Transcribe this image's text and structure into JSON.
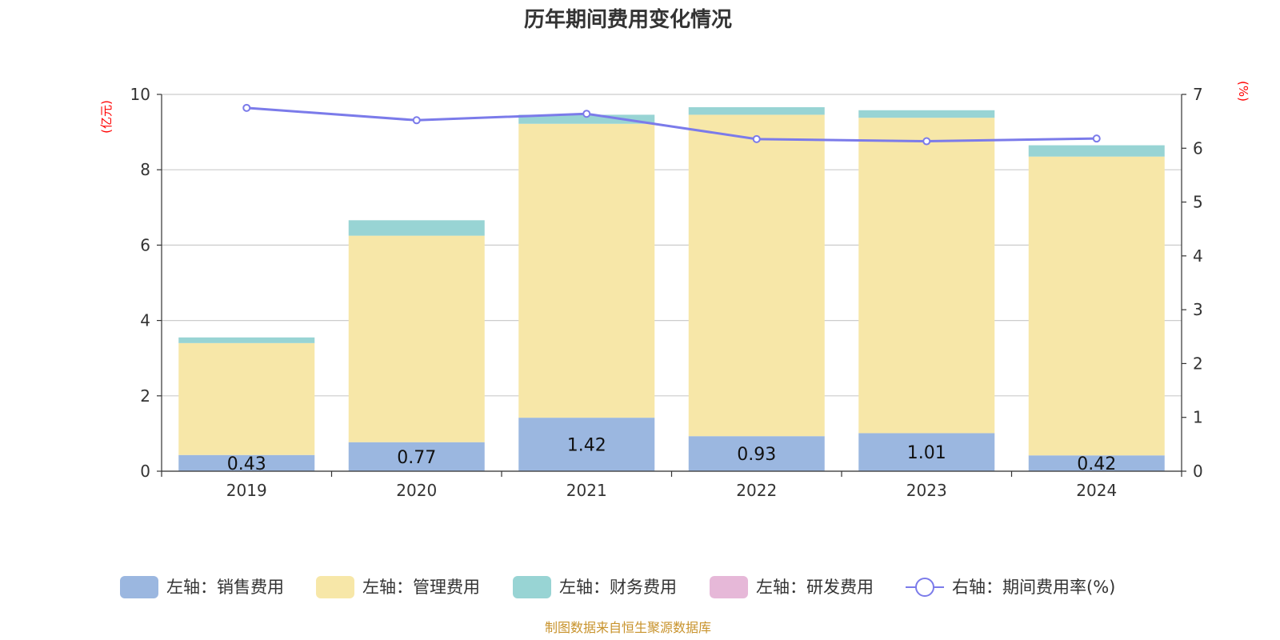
{
  "chart_data": {
    "type": "bar",
    "title": "历年期间费用变化情况",
    "left_axis_unit": "(亿元)",
    "right_axis_unit": "(%)",
    "categories": [
      "2019",
      "2020",
      "2021",
      "2022",
      "2023",
      "2024"
    ],
    "left_ylim": [
      0,
      10
    ],
    "left_ticks": [
      "0",
      "2",
      "4",
      "6",
      "8",
      "10"
    ],
    "right_ylim": [
      0,
      7
    ],
    "right_ticks": [
      "0",
      "1",
      "2",
      "3",
      "4",
      "5",
      "6",
      "7"
    ],
    "grid": true,
    "legend_position": "bottom",
    "series": [
      {
        "name": "左轴：销售费用",
        "type": "bar",
        "axis": "left",
        "color": "#9bb7e0",
        "values": [
          0.43,
          0.77,
          1.42,
          0.93,
          1.01,
          0.42
        ],
        "labels": [
          "0.43",
          "0.77",
          "1.42",
          "0.93",
          "1.01",
          "0.42"
        ]
      },
      {
        "name": "左轴：管理费用",
        "type": "bar",
        "axis": "left",
        "color": "#f7e7a8",
        "values": [
          2.97,
          5.48,
          7.8,
          8.53,
          8.37,
          7.93
        ]
      },
      {
        "name": "左轴：财务费用",
        "type": "bar",
        "axis": "left",
        "color": "#98d4d4",
        "values": [
          0.15,
          0.41,
          0.24,
          0.2,
          0.2,
          0.3
        ]
      },
      {
        "name": "左轴：研发费用",
        "type": "bar",
        "axis": "left",
        "color": "#e6b8d8",
        "values": [
          0,
          0,
          0,
          0,
          0,
          0
        ]
      },
      {
        "name": "右轴：期间费用率(%)",
        "type": "line",
        "axis": "right",
        "color": "#7b7bea",
        "values": [
          6.75,
          6.52,
          6.64,
          6.17,
          6.13,
          6.18
        ]
      }
    ]
  },
  "source": "制图数据来自恒生聚源数据库"
}
